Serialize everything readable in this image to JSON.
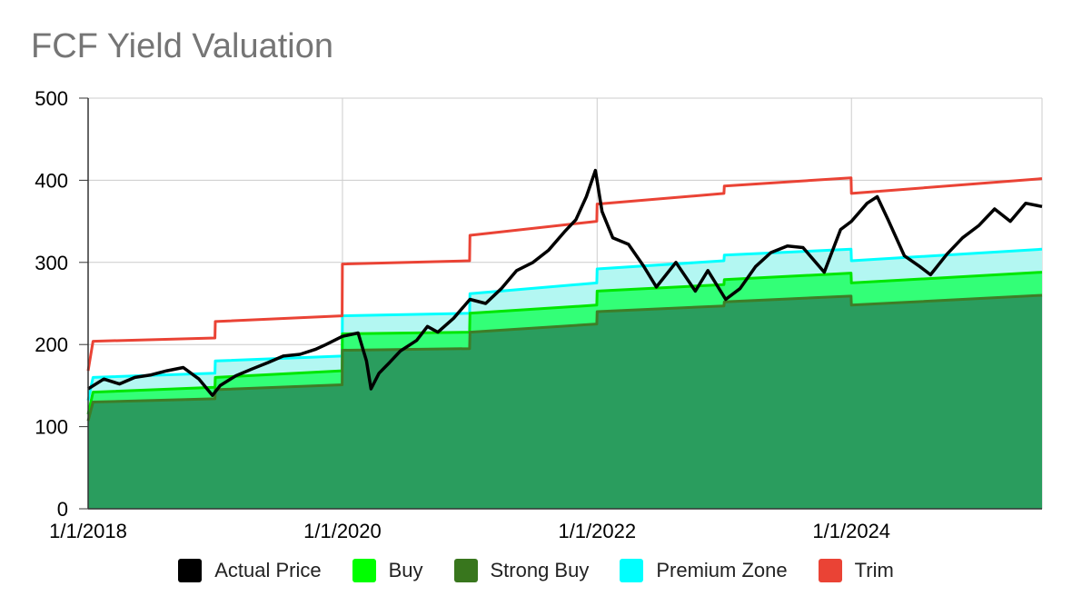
{
  "chart_data": {
    "type": "area",
    "title": "FCF Yield Valuation",
    "xlabel": "",
    "ylabel": "",
    "ylim": [
      0,
      500
    ],
    "y_ticks": [
      0,
      100,
      200,
      300,
      400,
      500
    ],
    "x_range": [
      "2018-01-01",
      "2025-07-01"
    ],
    "x_ticks": [
      {
        "date": "2018-01-01",
        "label": "1/1/2018"
      },
      {
        "date": "2020-01-01",
        "label": "1/1/2020"
      },
      {
        "date": "2022-01-01",
        "label": "1/1/2022"
      },
      {
        "date": "2024-01-01",
        "label": "1/1/2024"
      }
    ],
    "grid": true,
    "legend_position": "bottom",
    "series": [
      {
        "name": "Actual Price",
        "key": "price",
        "color": "#000000",
        "style": "line",
        "points": [
          [
            "2018-01-01",
            146
          ],
          [
            "2018-02-15",
            158
          ],
          [
            "2018-04-01",
            152
          ],
          [
            "2018-05-15",
            160
          ],
          [
            "2018-07-01",
            163
          ],
          [
            "2018-08-15",
            168
          ],
          [
            "2018-10-01",
            172
          ],
          [
            "2018-11-15",
            158
          ],
          [
            "2018-12-24",
            138
          ],
          [
            "2019-01-15",
            150
          ],
          [
            "2019-03-01",
            162
          ],
          [
            "2019-04-15",
            170
          ],
          [
            "2019-06-01",
            178
          ],
          [
            "2019-07-15",
            186
          ],
          [
            "2019-09-01",
            188
          ],
          [
            "2019-10-15",
            194
          ],
          [
            "2019-11-15",
            200
          ],
          [
            "2020-01-01",
            210
          ],
          [
            "2020-02-15",
            214
          ],
          [
            "2020-03-10",
            180
          ],
          [
            "2020-03-23",
            146
          ],
          [
            "2020-04-15",
            165
          ],
          [
            "2020-05-15",
            178
          ],
          [
            "2020-06-15",
            192
          ],
          [
            "2020-08-01",
            205
          ],
          [
            "2020-09-01",
            222
          ],
          [
            "2020-10-01",
            215
          ],
          [
            "2020-11-15",
            232
          ],
          [
            "2021-01-01",
            255
          ],
          [
            "2021-02-15",
            250
          ],
          [
            "2021-04-01",
            268
          ],
          [
            "2021-05-15",
            290
          ],
          [
            "2021-07-01",
            300
          ],
          [
            "2021-08-15",
            315
          ],
          [
            "2021-10-01",
            338
          ],
          [
            "2021-11-01",
            352
          ],
          [
            "2021-12-01",
            380
          ],
          [
            "2021-12-27",
            412
          ],
          [
            "2022-01-15",
            362
          ],
          [
            "2022-02-15",
            330
          ],
          [
            "2022-04-01",
            322
          ],
          [
            "2022-05-15",
            295
          ],
          [
            "2022-06-20",
            270
          ],
          [
            "2022-08-15",
            300
          ],
          [
            "2022-10-10",
            265
          ],
          [
            "2022-11-15",
            290
          ],
          [
            "2023-01-05",
            255
          ],
          [
            "2023-02-15",
            268
          ],
          [
            "2023-04-01",
            295
          ],
          [
            "2023-05-15",
            312
          ],
          [
            "2023-07-01",
            320
          ],
          [
            "2023-08-15",
            318
          ],
          [
            "2023-10-15",
            288
          ],
          [
            "2023-12-01",
            340
          ],
          [
            "2024-01-01",
            350
          ],
          [
            "2024-02-15",
            372
          ],
          [
            "2024-03-15",
            380
          ],
          [
            "2024-04-15",
            352
          ],
          [
            "2024-06-01",
            308
          ],
          [
            "2024-07-15",
            295
          ],
          [
            "2024-08-15",
            285
          ],
          [
            "2024-10-01",
            310
          ],
          [
            "2024-11-15",
            330
          ],
          [
            "2025-01-01",
            345
          ],
          [
            "2025-02-15",
            365
          ],
          [
            "2025-04-01",
            350
          ],
          [
            "2025-05-15",
            372
          ],
          [
            "2025-07-01",
            368
          ]
        ]
      },
      {
        "name": "Premium Zone",
        "key": "premium",
        "color": "#00ffff",
        "fill": "#b3f7f2",
        "style": "step-area",
        "points": [
          [
            "2018-01-01",
            132
          ],
          [
            "2018-01-15",
            160
          ],
          [
            "2018-12-31",
            165
          ],
          [
            "2019-01-01",
            180
          ],
          [
            "2019-12-31",
            186
          ],
          [
            "2020-01-01",
            235
          ],
          [
            "2020-12-31",
            238
          ],
          [
            "2021-01-01",
            262
          ],
          [
            "2021-12-31",
            275
          ],
          [
            "2022-01-01",
            292
          ],
          [
            "2022-12-31",
            302
          ],
          [
            "2023-01-01",
            309
          ],
          [
            "2023-12-31",
            316
          ],
          [
            "2024-01-01",
            302
          ],
          [
            "2025-07-01",
            316
          ]
        ]
      },
      {
        "name": "Buy",
        "key": "buy",
        "color": "#00e600",
        "fill": "#33ff77",
        "style": "step-area",
        "points": [
          [
            "2018-01-01",
            115
          ],
          [
            "2018-01-15",
            142
          ],
          [
            "2018-12-31",
            148
          ],
          [
            "2019-01-01",
            160
          ],
          [
            "2019-12-31",
            168
          ],
          [
            "2020-01-01",
            213
          ],
          [
            "2020-12-31",
            215
          ],
          [
            "2021-01-01",
            238
          ],
          [
            "2021-12-31",
            248
          ],
          [
            "2022-01-01",
            265
          ],
          [
            "2022-12-31",
            273
          ],
          [
            "2023-01-01",
            279
          ],
          [
            "2023-12-31",
            287
          ],
          [
            "2024-01-01",
            275
          ],
          [
            "2025-07-01",
            288
          ]
        ]
      },
      {
        "name": "Strong Buy",
        "key": "strong",
        "color": "#3e7d27",
        "fill": "#2a9d5e",
        "style": "step-area",
        "points": [
          [
            "2018-01-01",
            107
          ],
          [
            "2018-01-15",
            130
          ],
          [
            "2018-12-31",
            134
          ],
          [
            "2019-01-01",
            145
          ],
          [
            "2019-12-31",
            151
          ],
          [
            "2020-01-01",
            193
          ],
          [
            "2020-12-31",
            195
          ],
          [
            "2021-01-01",
            215
          ],
          [
            "2021-12-31",
            225
          ],
          [
            "2022-01-01",
            240
          ],
          [
            "2022-12-31",
            247
          ],
          [
            "2023-01-01",
            252
          ],
          [
            "2023-12-31",
            259
          ],
          [
            "2024-01-01",
            248
          ],
          [
            "2025-07-01",
            260
          ]
        ]
      },
      {
        "name": "Trim",
        "key": "trim",
        "color": "#ea4335",
        "style": "step-line",
        "points": [
          [
            "2018-01-01",
            168
          ],
          [
            "2018-01-15",
            204
          ],
          [
            "2018-12-31",
            208
          ],
          [
            "2019-01-01",
            228
          ],
          [
            "2019-12-31",
            235
          ],
          [
            "2020-01-01",
            298
          ],
          [
            "2020-12-31",
            302
          ],
          [
            "2021-01-01",
            333
          ],
          [
            "2021-12-31",
            350
          ],
          [
            "2022-01-01",
            371
          ],
          [
            "2022-12-31",
            384
          ],
          [
            "2023-01-01",
            393
          ],
          [
            "2023-12-31",
            403
          ],
          [
            "2024-01-01",
            384
          ],
          [
            "2025-07-01",
            402
          ]
        ]
      }
    ],
    "legend": [
      {
        "label": "Actual Price",
        "color": "#000000"
      },
      {
        "label": "Buy",
        "color": "#00ff00"
      },
      {
        "label": "Strong Buy",
        "color": "#38761d"
      },
      {
        "label": "Premium Zone",
        "color": "#00ffff"
      },
      {
        "label": "Trim",
        "color": "#ea4335"
      }
    ]
  }
}
